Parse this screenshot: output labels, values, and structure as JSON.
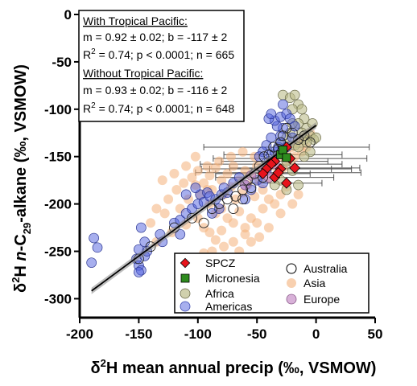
{
  "chart_data": {
    "type": "scatter",
    "xlabel": "δ²H mean annual precip (‰, VSMOW)",
    "ylabel": "δ²H n-C29-alkane (‰, VSMOW)",
    "xlim": [
      -200,
      50
    ],
    "ylim": [
      -320,
      0
    ],
    "x_ticks": [
      "-200",
      "-150",
      "-100",
      "-50",
      "0",
      "50"
    ],
    "y_ticks": [
      "0",
      "-50",
      "-100",
      "-150",
      "-200",
      "-250",
      "-300"
    ],
    "x_tick_values": [
      -200,
      -150,
      -100,
      -50,
      0,
      50
    ],
    "y_tick_values": [
      0,
      -50,
      -100,
      -150,
      -200,
      -250,
      -300
    ],
    "stats_box": {
      "with_heading": "With Tropical Pacific:",
      "with_fit": "m = 0.92 ± 0.02; b = -117 ± 2",
      "with_r2": "R2 = 0.74; p < 0.0001; n = 665",
      "without_heading": "Without Tropical Pacific:",
      "without_fit": "m = 0.93 ± 0.02; b = -116 ± 2",
      "without_r2": "R2 = 0.74; p < 0.0001; n = 648"
    },
    "regression": {
      "slope": 0.92,
      "intercept": -117,
      "x_range": [
        -190,
        0
      ]
    },
    "legend": {
      "position": "bottom-right",
      "entries": [
        "SPCZ",
        "Micronesia",
        "Africa",
        "Americas",
        "Australia",
        "Asia",
        "Europe"
      ]
    },
    "colors": {
      "SPCZ": "#e8141c",
      "Micronesia": "#2e8b1e",
      "Africa": "#bcbc8a",
      "Americas": "#5060dd",
      "Australia": "#ffffff",
      "Asia": "#f4b07a",
      "Europe": "#c890c8"
    },
    "series": [
      {
        "name": "Americas",
        "points": [
          [
            -188,
            -236
          ],
          [
            -185,
            -246
          ],
          [
            -190,
            -262
          ],
          [
            -152,
            -258
          ],
          [
            -150,
            -265
          ],
          [
            -148,
            -270
          ],
          [
            -145,
            -255
          ],
          [
            -150,
            -248
          ],
          [
            -143,
            -250
          ],
          [
            -148,
            -225
          ],
          [
            -132,
            -232
          ],
          [
            -120,
            -220
          ],
          [
            -115,
            -217
          ],
          [
            -110,
            -210
          ],
          [
            -105,
            -205
          ],
          [
            -100,
            -200
          ],
          [
            -95,
            -198
          ],
          [
            -98,
            -190
          ],
          [
            -92,
            -188
          ],
          [
            -90,
            -192
          ],
          [
            -85,
            -195
          ],
          [
            -80,
            -190
          ],
          [
            -75,
            -188
          ],
          [
            -110,
            -190
          ],
          [
            -102,
            -183
          ],
          [
            -78,
            -183
          ],
          [
            -70,
            -178
          ],
          [
            -60,
            -195
          ],
          [
            -55,
            -185
          ],
          [
            -65,
            -172
          ],
          [
            -50,
            -175
          ],
          [
            -45,
            -178
          ],
          [
            -42,
            -165
          ],
          [
            -40,
            -155
          ],
          [
            -38,
            -148
          ],
          [
            -35,
            -145
          ],
          [
            -32,
            -140
          ],
          [
            -30,
            -135
          ],
          [
            -30,
            -128
          ],
          [
            -28,
            -120
          ],
          [
            -33,
            -118
          ],
          [
            -35,
            -112
          ],
          [
            -40,
            -110
          ],
          [
            -38,
            -105
          ],
          [
            -30,
            -108
          ],
          [
            -28,
            -95
          ],
          [
            -25,
            -105
          ],
          [
            -22,
            -110
          ],
          [
            -18,
            -118
          ],
          [
            -20,
            -130
          ],
          [
            -25,
            -140
          ],
          [
            -38,
            -130
          ],
          [
            -42,
            -138
          ],
          [
            -45,
            -145
          ],
          [
            -48,
            -150
          ],
          [
            -60,
            -180
          ],
          [
            -82,
            -205
          ],
          [
            -88,
            -210
          ],
          [
            -115,
            -232
          ],
          [
            -130,
            -240
          ],
          [
            -145,
            -240
          ],
          [
            -150,
            -272
          ]
        ]
      },
      {
        "name": "Africa",
        "points": [
          [
            -28,
            -85
          ],
          [
            -22,
            -88
          ],
          [
            -18,
            -85
          ],
          [
            -15,
            -95
          ],
          [
            -20,
            -100
          ],
          [
            -12,
            -100
          ],
          [
            -10,
            -110
          ],
          [
            -15,
            -115
          ],
          [
            -8,
            -120
          ],
          [
            -5,
            -128
          ],
          [
            -2,
            -132
          ],
          [
            0,
            -130
          ],
          [
            -10,
            -132
          ],
          [
            -18,
            -138
          ],
          [
            -22,
            -125
          ],
          [
            -25,
            -130
          ],
          [
            -30,
            -135
          ],
          [
            -15,
            -140
          ],
          [
            -5,
            -145
          ],
          [
            -10,
            -150
          ],
          [
            -25,
            -155
          ],
          [
            -20,
            -165
          ],
          [
            -30,
            -175
          ],
          [
            -35,
            -180
          ],
          [
            -25,
            -185
          ],
          [
            -15,
            -180
          ],
          [
            -8,
            -135
          ],
          [
            -3,
            -115
          ],
          [
            -12,
            -125
          ],
          [
            -20,
            -115
          ]
        ]
      },
      {
        "name": "Australia",
        "points": [
          [
            -150,
            -258
          ],
          [
            -140,
            -245
          ],
          [
            -120,
            -225
          ],
          [
            -105,
            -215
          ],
          [
            -95,
            -220
          ],
          [
            -88,
            -205
          ],
          [
            -82,
            -200
          ],
          [
            -75,
            -195
          ],
          [
            -68,
            -192
          ],
          [
            -62,
            -185
          ],
          [
            -58,
            -175
          ],
          [
            -52,
            -168
          ],
          [
            -48,
            -160
          ],
          [
            -44,
            -150
          ],
          [
            -40,
            -148
          ],
          [
            -36,
            -140
          ],
          [
            -32,
            -142
          ],
          [
            -30,
            -135
          ],
          [
            -28,
            -128
          ],
          [
            -25,
            -120
          ],
          [
            -20,
            -125
          ],
          [
            -15,
            -132
          ],
          [
            -10,
            -128
          ],
          [
            -5,
            -135
          ],
          [
            -70,
            -205
          ],
          [
            -62,
            -195
          ],
          [
            -55,
            -183
          ],
          [
            -45,
            -172
          ]
        ]
      },
      {
        "name": "Asia",
        "points": [
          [
            -130,
            -175
          ],
          [
            -120,
            -168
          ],
          [
            -110,
            -160
          ],
          [
            -105,
            -172
          ],
          [
            -100,
            -165
          ],
          [
            -95,
            -178
          ],
          [
            -90,
            -170
          ],
          [
            -88,
            -185
          ],
          [
            -85,
            -162
          ],
          [
            -80,
            -175
          ],
          [
            -78,
            -190
          ],
          [
            -75,
            -168
          ],
          [
            -72,
            -182
          ],
          [
            -70,
            -160
          ],
          [
            -68,
            -195
          ],
          [
            -65,
            -175
          ],
          [
            -62,
            -188
          ],
          [
            -60,
            -165
          ],
          [
            -58,
            -180
          ],
          [
            -55,
            -170
          ],
          [
            -52,
            -192
          ],
          [
            -50,
            -160
          ],
          [
            -48,
            -175
          ],
          [
            -45,
            -185
          ],
          [
            -42,
            -165
          ],
          [
            -40,
            -172
          ],
          [
            -38,
            -155
          ],
          [
            -35,
            -160
          ],
          [
            -32,
            -168
          ],
          [
            -30,
            -150
          ],
          [
            -28,
            -162
          ],
          [
            -25,
            -145
          ],
          [
            -22,
            -155
          ],
          [
            -20,
            -140
          ],
          [
            -18,
            -150
          ],
          [
            -15,
            -135
          ],
          [
            -12,
            -145
          ],
          [
            -10,
            -130
          ],
          [
            -8,
            -140
          ],
          [
            -5,
            -125
          ],
          [
            -90,
            -200
          ],
          [
            -85,
            -210
          ],
          [
            -80,
            -205
          ],
          [
            -75,
            -215
          ],
          [
            -70,
            -220
          ],
          [
            -65,
            -208
          ],
          [
            -60,
            -225
          ],
          [
            -55,
            -215
          ],
          [
            -100,
            -215
          ],
          [
            -95,
            -225
          ],
          [
            -90,
            -230
          ],
          [
            -85,
            -238
          ],
          [
            -80,
            -228
          ],
          [
            -110,
            -222
          ],
          [
            -115,
            -205
          ],
          [
            -108,
            -195
          ],
          [
            -98,
            -190
          ],
          [
            -92,
            -185
          ],
          [
            -102,
            -180
          ],
          [
            -118,
            -185
          ],
          [
            -125,
            -195
          ],
          [
            -128,
            -210
          ],
          [
            -122,
            -230
          ],
          [
            -135,
            -240
          ],
          [
            -140,
            -220
          ],
          [
            -135,
            -205
          ],
          [
            -70,
            -240
          ],
          [
            -60,
            -232
          ],
          [
            -50,
            -220
          ],
          [
            -45,
            -205
          ],
          [
            -40,
            -195
          ],
          [
            -35,
            -200
          ],
          [
            -30,
            -190
          ],
          [
            -25,
            -182
          ],
          [
            -52,
            -150
          ],
          [
            -62,
            -145
          ],
          [
            -72,
            -150
          ],
          [
            -82,
            -155
          ],
          [
            -92,
            -160
          ],
          [
            -102,
            -150
          ],
          [
            -112,
            -178
          ],
          [
            -78,
            -245
          ],
          [
            -88,
            -250
          ],
          [
            -95,
            -252
          ],
          [
            -65,
            -250
          ],
          [
            -55,
            -240
          ],
          [
            -48,
            -235
          ],
          [
            -40,
            -225
          ],
          [
            -30,
            -210
          ],
          [
            -20,
            -200
          ],
          [
            -15,
            -190
          ]
        ]
      },
      {
        "name": "Europe",
        "points": [
          [
            -55,
            -170
          ],
          [
            -45,
            -165
          ],
          [
            -35,
            -158
          ],
          [
            -60,
            -180
          ],
          [
            -40,
            -172
          ]
        ]
      },
      {
        "name": "Micronesia",
        "points": [
          [
            -30,
            -148
          ],
          [
            -28,
            -143
          ],
          [
            -25,
            -151
          ]
        ]
      },
      {
        "name": "SPCZ",
        "points": [
          [
            -28,
            -148
          ],
          [
            -25,
            -140
          ],
          [
            -22,
            -152
          ],
          [
            -35,
            -155
          ],
          [
            -38,
            -158
          ],
          [
            -42,
            -163
          ],
          [
            -45,
            -168
          ],
          [
            -30,
            -163
          ],
          [
            -35,
            -172
          ],
          [
            -25,
            -178
          ],
          [
            -18,
            -162
          ],
          [
            -32,
            -167
          ]
        ],
        "x_errors": [
          50,
          70,
          65,
          45,
          60,
          55,
          40,
          60,
          50,
          30,
          55,
          70
        ]
      }
    ]
  }
}
